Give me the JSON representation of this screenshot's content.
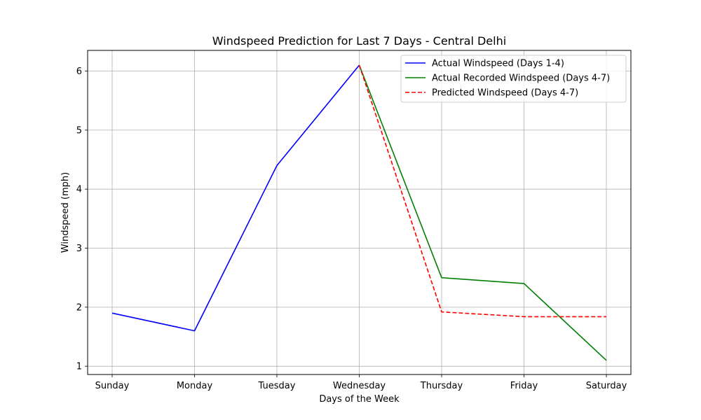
{
  "chart_data": {
    "type": "line",
    "title": "Windspeed Prediction for Last 7 Days - Central Delhi",
    "xlabel": "Days of the Week",
    "ylabel": "Windspeed (mph)",
    "categories": [
      "Sunday",
      "Monday",
      "Tuesday",
      "Wednesday",
      "Thursday",
      "Friday",
      "Saturday"
    ],
    "ylim": [
      0.86,
      6.35
    ],
    "yticks": [
      1,
      2,
      3,
      4,
      5,
      6
    ],
    "grid": true,
    "legend_position": "top-right",
    "series": [
      {
        "name": "Actual Windspeed (Days 1-4)",
        "color": "#0000ff",
        "dash": "solid",
        "points": [
          {
            "x": "Sunday",
            "y": 1.9
          },
          {
            "x": "Monday",
            "y": 1.6
          },
          {
            "x": "Tuesday",
            "y": 4.4
          },
          {
            "x": "Wednesday",
            "y": 6.1
          }
        ]
      },
      {
        "name": "Actual Recorded Windspeed (Days 4-7)",
        "color": "#008000",
        "dash": "solid",
        "points": [
          {
            "x": "Wednesday",
            "y": 6.1
          },
          {
            "x": "Thursday",
            "y": 2.5
          },
          {
            "x": "Friday",
            "y": 2.4
          },
          {
            "x": "Saturday",
            "y": 1.1
          }
        ]
      },
      {
        "name": "Predicted Windspeed (Days 4-7)",
        "color": "#ff0000",
        "dash": "dashed",
        "points": [
          {
            "x": "Wednesday",
            "y": 6.1
          },
          {
            "x": "Thursday",
            "y": 1.92
          },
          {
            "x": "Friday",
            "y": 1.84
          },
          {
            "x": "Saturday",
            "y": 1.84
          }
        ]
      }
    ]
  }
}
